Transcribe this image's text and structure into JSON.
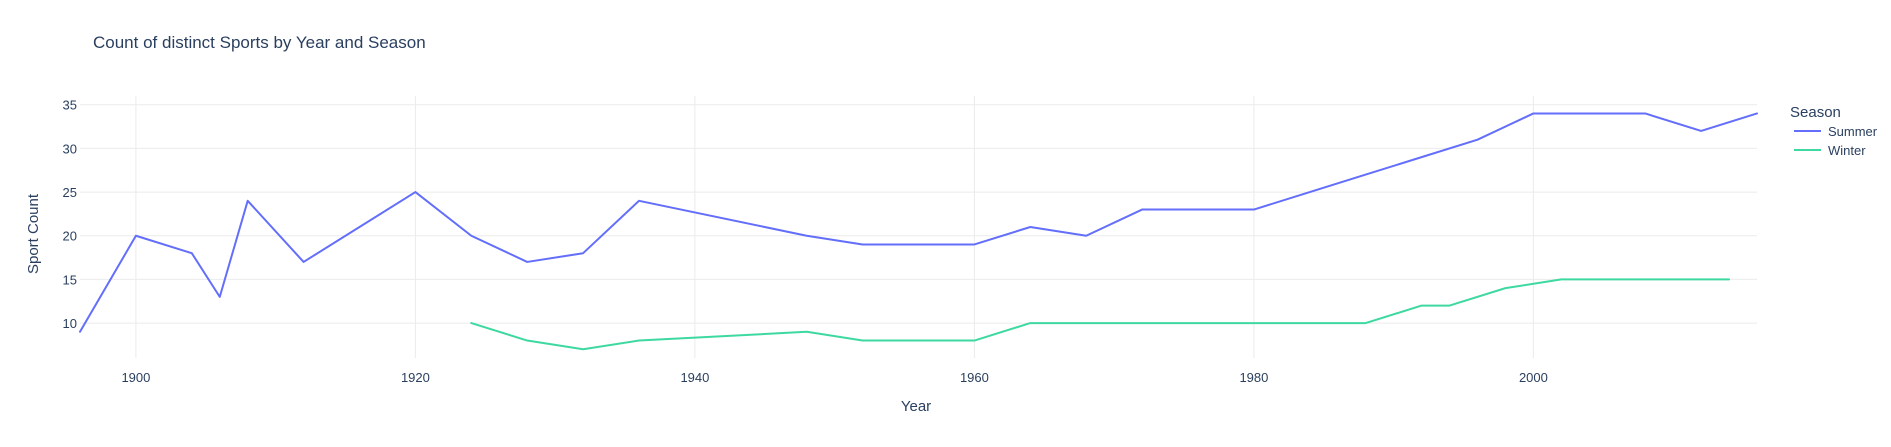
{
  "chart_data": {
    "type": "line",
    "title": "Count of distinct Sports by Year and Season",
    "xlabel": "Year",
    "ylabel": "Sport Count",
    "xlim": [
      1896,
      2016
    ],
    "ylim": [
      6,
      36
    ],
    "x_ticks": [
      1900,
      1920,
      1940,
      1960,
      1980,
      2000
    ],
    "y_ticks": [
      10,
      15,
      20,
      25,
      30,
      35
    ],
    "grid": true,
    "legend": {
      "title": "Season",
      "position": "top-right"
    },
    "series": [
      {
        "name": "Summer",
        "color": "#636efa",
        "x": [
          1896,
          1900,
          1904,
          1906,
          1908,
          1912,
          1920,
          1924,
          1928,
          1932,
          1936,
          1948,
          1952,
          1956,
          1960,
          1964,
          1968,
          1972,
          1976,
          1980,
          1984,
          1988,
          1992,
          1996,
          2000,
          2004,
          2008,
          2012,
          2016
        ],
        "y": [
          9,
          20,
          18,
          13,
          24,
          17,
          25,
          20,
          17,
          18,
          24,
          20,
          19,
          19,
          19,
          21,
          20,
          23,
          23,
          23,
          25,
          27,
          29,
          31,
          34,
          34,
          34,
          32,
          34
        ]
      },
      {
        "name": "Winter",
        "color": "#3dd9a0",
        "x": [
          1924,
          1928,
          1932,
          1936,
          1948,
          1952,
          1956,
          1960,
          1964,
          1968,
          1972,
          1976,
          1980,
          1984,
          1988,
          1992,
          1994,
          1998,
          2002,
          2006,
          2010,
          2014
        ],
        "y": [
          10,
          8,
          7,
          8,
          9,
          8,
          8,
          8,
          10,
          10,
          10,
          10,
          10,
          10,
          10,
          12,
          12,
          14,
          15,
          15,
          15,
          15
        ]
      }
    ]
  }
}
